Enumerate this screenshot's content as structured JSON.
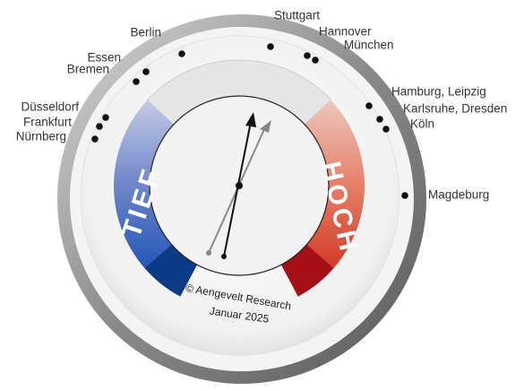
{
  "gauge": {
    "low_label": "TIEF",
    "high_label": "HOCH"
  },
  "cities": [
    "Stuttgart",
    "Hannover",
    "München",
    "Berlin",
    "Essen",
    "Bremen",
    "Hamburg, Leipzig",
    "Karlsruhe, Dresden",
    "Köln",
    "Magdeburg",
    "Düsseldorf",
    "Frankfurt",
    "Nürnberg"
  ],
  "credit": {
    "line1": "© Aengevelt Research",
    "line2": "Januar 2025"
  }
}
